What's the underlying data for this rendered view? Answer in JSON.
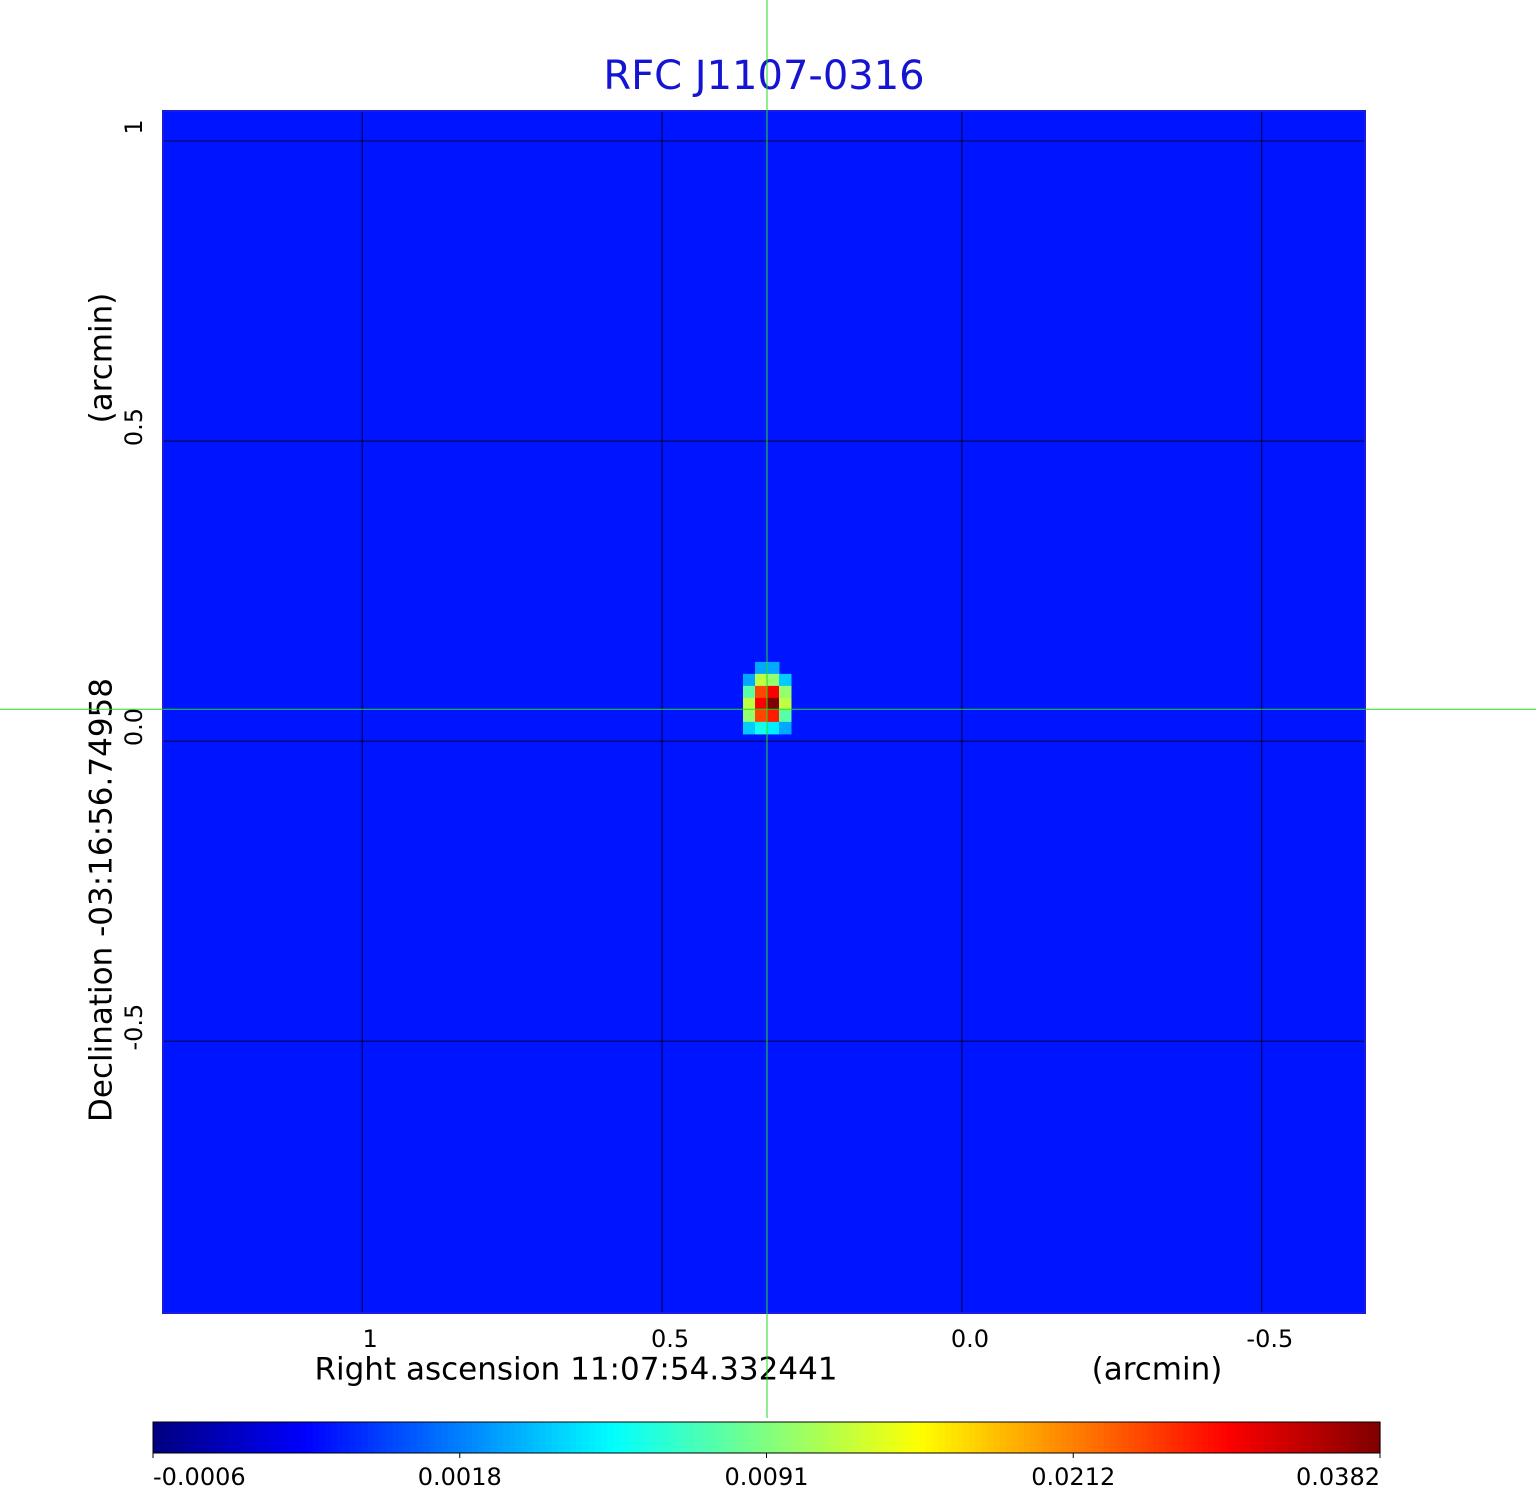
{
  "chart_data": {
    "type": "heatmap",
    "title": "RFC J1107-0316",
    "x_label": "Right ascension  11:07:54.332441",
    "x_unit": "(arcmin)",
    "y_label": "Declination  -03:16:56.74958",
    "y_unit": "(arcmin)",
    "xlim": [
      1.332,
      -0.672
    ],
    "ylim": [
      -0.953,
      1.05
    ],
    "xticks": [
      1.0,
      0.5,
      {
        "value": 0,
        "label": "0.0"
      },
      -0.5
    ],
    "yticks": [
      {
        "value": -0.5,
        "label": "-0.5"
      },
      {
        "value": 0,
        "label": "0.0"
      },
      0.5,
      1.0
    ],
    "grid": true,
    "colormap": "jet",
    "background": 0.0008,
    "crosshair": {
      "x": 0.325,
      "y": 0.053
    },
    "cell_size": 0.02,
    "cells": [
      {
        "x": 0.335,
        "y": 0.122,
        "value": 0.003
      },
      {
        "x": 0.315,
        "y": 0.122,
        "value": 0.003
      },
      {
        "x": 0.355,
        "y": 0.102,
        "value": 0.003
      },
      {
        "x": 0.335,
        "y": 0.102,
        "value": 0.012
      },
      {
        "x": 0.315,
        "y": 0.102,
        "value": 0.01
      },
      {
        "x": 0.295,
        "y": 0.102,
        "value": 0.004
      },
      {
        "x": 0.355,
        "y": 0.082,
        "value": 0.008
      },
      {
        "x": 0.335,
        "y": 0.082,
        "value": 0.025
      },
      {
        "x": 0.315,
        "y": 0.082,
        "value": 0.03
      },
      {
        "x": 0.295,
        "y": 0.082,
        "value": 0.01
      },
      {
        "x": 0.355,
        "y": 0.062,
        "value": 0.012
      },
      {
        "x": 0.335,
        "y": 0.062,
        "value": 0.03
      },
      {
        "x": 0.315,
        "y": 0.062,
        "value": 0.0382
      },
      {
        "x": 0.295,
        "y": 0.062,
        "value": 0.012
      },
      {
        "x": 0.355,
        "y": 0.042,
        "value": 0.01
      },
      {
        "x": 0.335,
        "y": 0.042,
        "value": 0.025
      },
      {
        "x": 0.315,
        "y": 0.042,
        "value": 0.028
      },
      {
        "x": 0.295,
        "y": 0.042,
        "value": 0.008
      },
      {
        "x": 0.355,
        "y": 0.022,
        "value": 0.004
      },
      {
        "x": 0.335,
        "y": 0.022,
        "value": 0.006
      },
      {
        "x": 0.315,
        "y": 0.022,
        "value": 0.005
      },
      {
        "x": 0.295,
        "y": 0.022,
        "value": 0.003
      }
    ],
    "colorbar_ticks": [
      -0.0006,
      0.0018,
      0.0091,
      0.0212,
      0.0382
    ]
  }
}
